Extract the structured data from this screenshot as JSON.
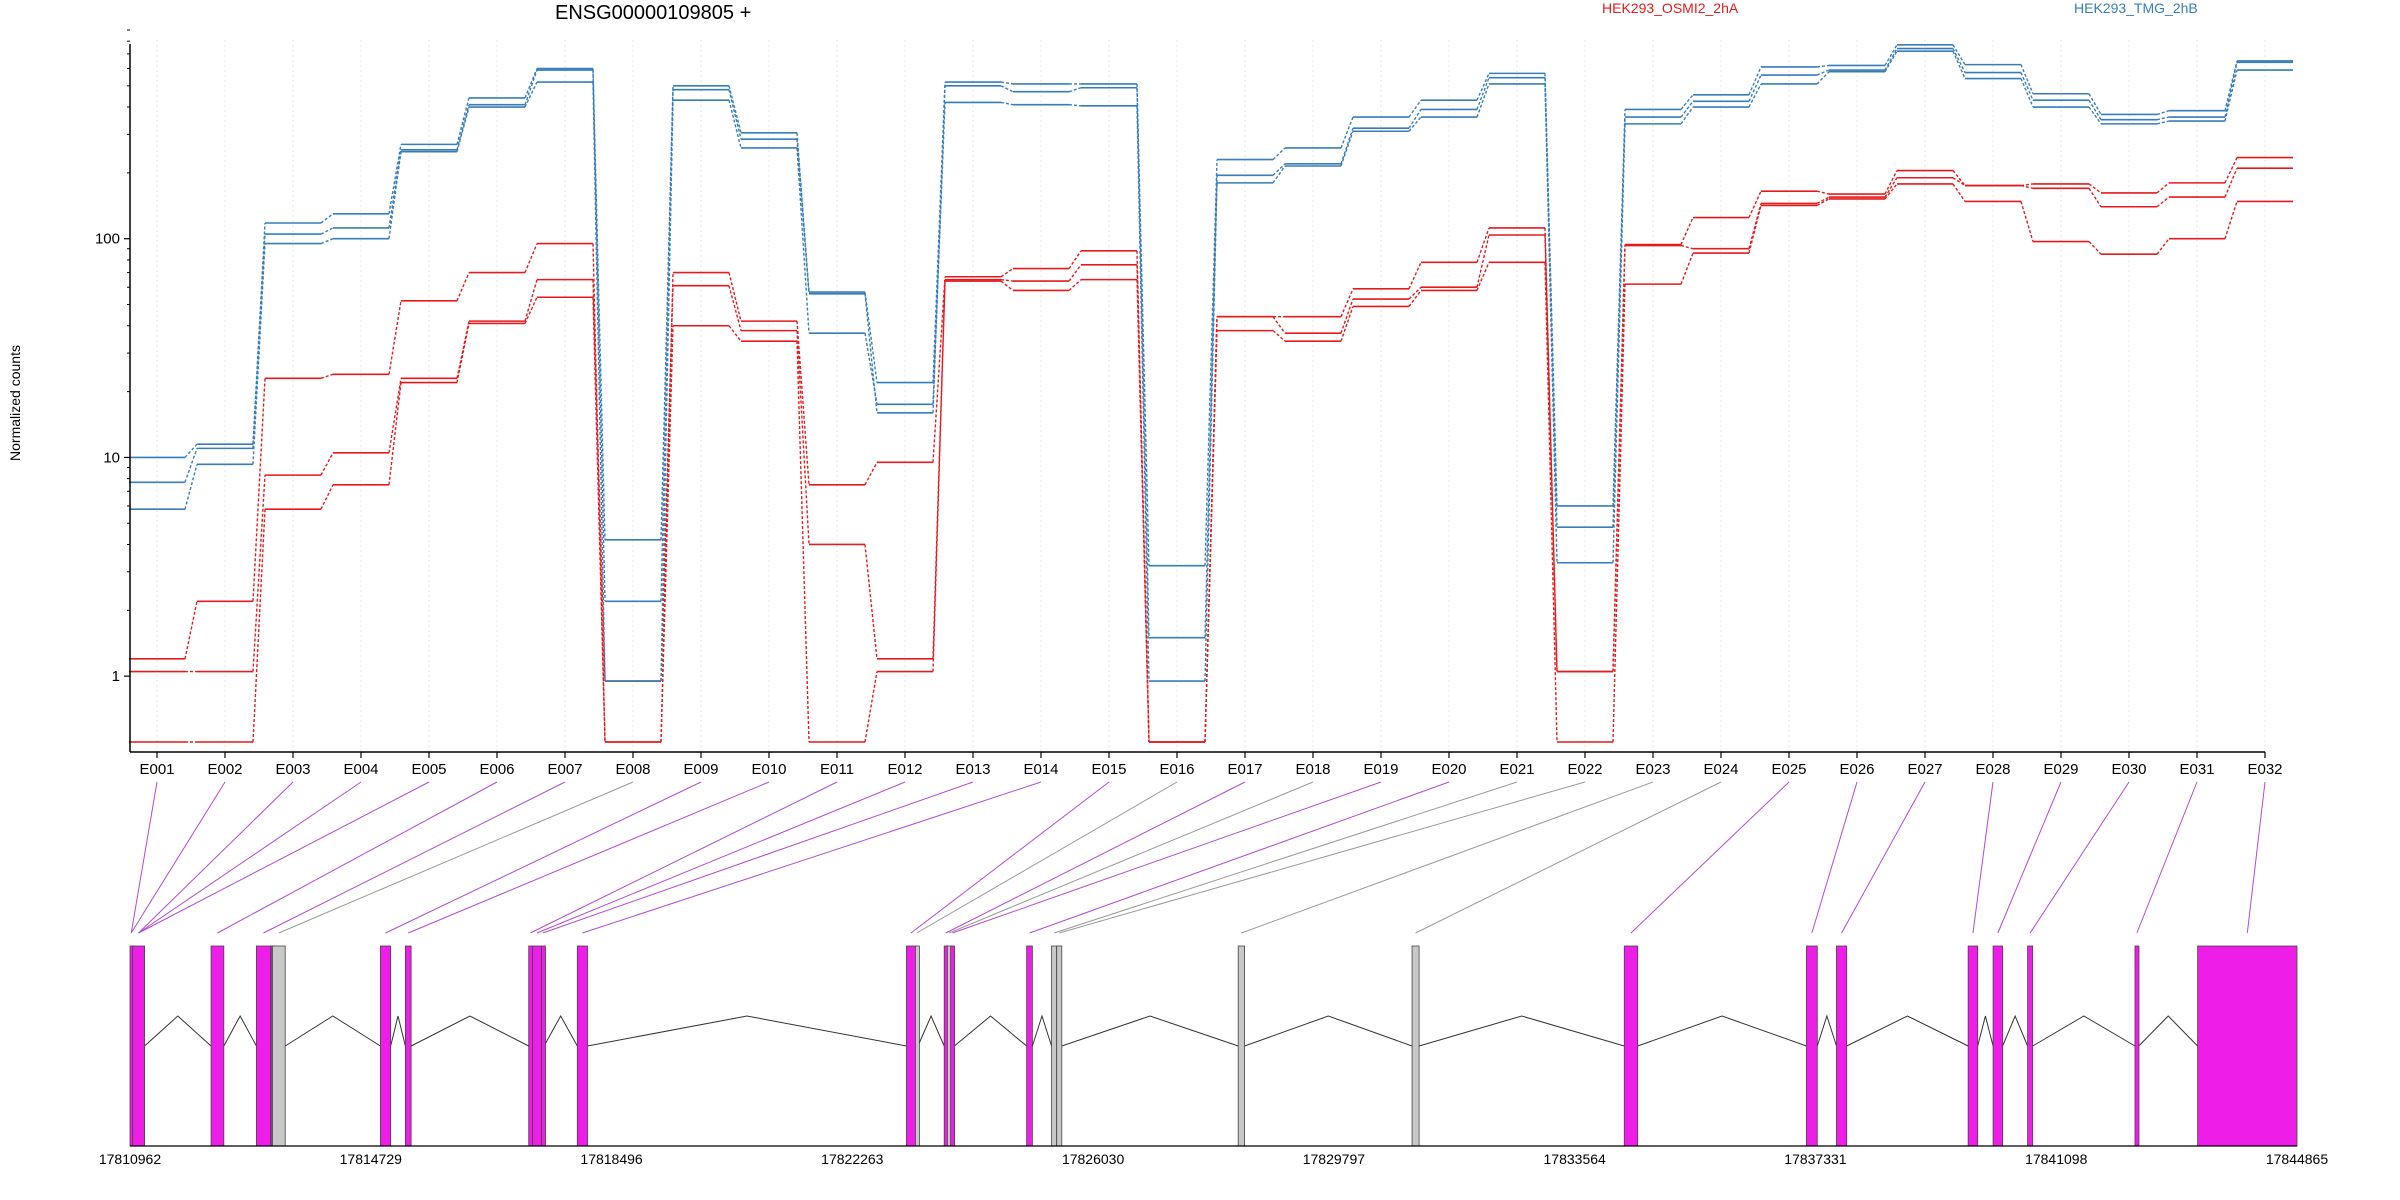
{
  "chart_data": {
    "type": "line",
    "title": "ENSG00000109805 +",
    "ylabel": "Normalized counts",
    "yscale": "log",
    "ylim": [
      0.5,
      900
    ],
    "yticks": [
      "1",
      "10",
      "100"
    ],
    "categories": [
      "E001",
      "E002",
      "E003",
      "E004",
      "E005",
      "E006",
      "E007",
      "E008",
      "E009",
      "E010",
      "E011",
      "E012",
      "E013",
      "E014",
      "E015",
      "E016",
      "E017",
      "E018",
      "E019",
      "E020",
      "E021",
      "E022",
      "E023",
      "E024",
      "E025",
      "E026",
      "E027",
      "E028",
      "E029",
      "E030",
      "E031",
      "E032"
    ],
    "series": [
      {
        "name": "HEK293_OSMI2_2hA",
        "color": "#e41a1c",
        "group": "HEK293_OSMI2_2hA",
        "values": [
          1.2,
          2.2,
          23,
          24,
          52,
          70,
          95,
          0.5,
          70,
          42,
          7.5,
          9.5,
          67,
          73,
          88,
          0.5,
          44,
          44,
          59,
          78,
          112,
          1.05,
          94,
          125,
          165,
          160,
          205,
          175,
          178,
          162,
          180,
          235
        ]
      },
      {
        "name": "",
        "color": "#e41a1c",
        "group": "HEK293_OSMI2_2hA",
        "values": [
          1.05,
          1.05,
          8.3,
          10.5,
          23,
          42,
          65,
          0.95,
          61,
          38,
          4,
          1.2,
          65,
          64,
          76,
          0.5,
          44,
          37,
          53,
          60,
          104,
          1.05,
          93,
          90,
          145,
          155,
          190,
          175,
          170,
          140,
          155,
          210
        ]
      },
      {
        "name": "",
        "color": "#e41a1c",
        "group": "HEK293_OSMI2_2hA",
        "values": [
          0.5,
          0.5,
          5.8,
          7.5,
          22,
          41,
          54,
          0.5,
          40,
          34,
          0.5,
          1.05,
          64,
          58,
          65,
          0.5,
          38,
          34,
          49,
          58,
          78,
          0.5,
          62,
          86,
          142,
          152,
          178,
          148,
          97,
          85,
          100,
          148
        ]
      },
      {
        "name": "HEK293_TMG_2hB",
        "color": "#377eb8",
        "group": "HEK293_TMG_2hB",
        "values": [
          10,
          11.5,
          118,
          130,
          270,
          440,
          600,
          4.2,
          500,
          305,
          57,
          22,
          520,
          510,
          510,
          3.2,
          230,
          260,
          360,
          430,
          570,
          6,
          390,
          455,
          610,
          620,
          770,
          625,
          460,
          370,
          385,
          650
        ]
      },
      {
        "name": "",
        "color": "#377eb8",
        "group": "HEK293_TMG_2hB",
        "values": [
          7.7,
          11,
          105,
          112,
          255,
          410,
          590,
          2.2,
          480,
          285,
          56,
          16,
          500,
          470,
          490,
          1.5,
          195,
          220,
          320,
          390,
          545,
          4.8,
          360,
          425,
          560,
          590,
          740,
          575,
          430,
          350,
          360,
          640
        ]
      },
      {
        "name": "",
        "color": "#377eb8",
        "group": "HEK293_TMG_2hB",
        "values": [
          5.8,
          9.3,
          95,
          100,
          250,
          400,
          520,
          0.95,
          430,
          260,
          37,
          17.5,
          420,
          410,
          405,
          0.95,
          180,
          215,
          310,
          360,
          510,
          3.3,
          335,
          400,
          510,
          580,
          720,
          540,
          400,
          335,
          345,
          590
        ]
      }
    ],
    "legend": [
      {
        "label": "HEK293_OSMI2_2hA",
        "color": "#e41a1c"
      },
      {
        "label": "HEK293_TMG_2hB",
        "color": "#377eb8"
      }
    ],
    "gene_model": {
      "xlim": [
        17810962,
        17844865
      ],
      "xticks": [
        "17810962",
        "17814729",
        "17818496",
        "17822263",
        "17826030",
        "17829797",
        "17833564",
        "17837331",
        "17841098",
        "17844865"
      ],
      "exon_color": "#ee1ee8",
      "nontested_color": "#c8c8c8",
      "exons": [
        {
          "id": "E001",
          "start": 17810962,
          "end": 17811000,
          "tested": true
        },
        {
          "id": "E002",
          "start": 17811000,
          "end": 17811190,
          "tested": true
        },
        {
          "id": "E003",
          "start": 17812230,
          "end": 17812430,
          "tested": true
        },
        {
          "id": "E004",
          "start": 17812940,
          "end": 17813160,
          "tested": true
        },
        {
          "id": "E005",
          "start": 17813170,
          "end": 17813190,
          "tested": true
        },
        {
          "id": "E006",
          "start": 17813190,
          "end": 17813390,
          "tested": false
        },
        {
          "id": "E007",
          "start": 17814880,
          "end": 17815040,
          "tested": true
        },
        {
          "id": "E008",
          "start": 17815270,
          "end": 17815360,
          "tested": true
        },
        {
          "id": "E009",
          "start": 17817200,
          "end": 17817250,
          "tested": true
        },
        {
          "id": "E010",
          "start": 17817260,
          "end": 17817400,
          "tested": true
        },
        {
          "id": "E011",
          "start": 17817400,
          "end": 17817440,
          "tested": true
        },
        {
          "id": "E012",
          "start": 17817960,
          "end": 17818120,
          "tested": true
        },
        {
          "id": "E013",
          "start": 17823110,
          "end": 17823250,
          "tested": true
        },
        {
          "id": "E014",
          "start": 17823250,
          "end": 17823290,
          "tested": false
        },
        {
          "id": "E015",
          "start": 17823700,
          "end": 17823750,
          "tested": true
        },
        {
          "id": "E016",
          "start": 17823750,
          "end": 17823800,
          "tested": false
        },
        {
          "id": "E017",
          "start": 17823800,
          "end": 17823860,
          "tested": true
        },
        {
          "id": "E018",
          "start": 17824990,
          "end": 17825080,
          "tested": true
        },
        {
          "id": "E019",
          "start": 17825380,
          "end": 17825460,
          "tested": false
        },
        {
          "id": "E020",
          "start": 17825460,
          "end": 17825540,
          "tested": false
        },
        {
          "id": "E021",
          "start": 17828300,
          "end": 17828400,
          "tested": false
        },
        {
          "id": "E022",
          "start": 17831020,
          "end": 17831130,
          "tested": false
        },
        {
          "id": "E023",
          "start": 17834340,
          "end": 17834550,
          "tested": true
        },
        {
          "id": "E024",
          "start": 17837190,
          "end": 17837360,
          "tested": true
        },
        {
          "id": "E025",
          "start": 17837660,
          "end": 17837820,
          "tested": true
        },
        {
          "id": "E026",
          "start": 17839720,
          "end": 17839870,
          "tested": true
        },
        {
          "id": "E027",
          "start": 17840110,
          "end": 17840260,
          "tested": true
        },
        {
          "id": "E028",
          "start": 17840650,
          "end": 17840730,
          "tested": true
        },
        {
          "id": "E029",
          "start": 17842330,
          "end": 17842390,
          "tested": true
        },
        {
          "id": "E030",
          "start": 17843310,
          "end": 17844865,
          "tested": true
        }
      ],
      "connectors": [
        {
          "from": "E001",
          "exon": "E001"
        },
        {
          "from": "E002",
          "exon": "E001"
        },
        {
          "from": "E003",
          "exon": "E002"
        },
        {
          "from": "E004",
          "exon": "E002"
        },
        {
          "from": "E005",
          "exon": "E002"
        },
        {
          "from": "E006",
          "exon": "E003"
        },
        {
          "from": "E007",
          "exon": "E004"
        },
        {
          "from": "E008",
          "exon": "E006"
        },
        {
          "from": "E009",
          "exon": "E007"
        },
        {
          "from": "E010",
          "exon": "E008"
        },
        {
          "from": "E011",
          "exon": "E009"
        },
        {
          "from": "E012",
          "exon": "E010"
        },
        {
          "from": "E013",
          "exon": "E011"
        },
        {
          "from": "E014",
          "exon": "E012"
        },
        {
          "from": "E015",
          "exon": "E013"
        },
        {
          "from": "E016",
          "exon": "E014"
        },
        {
          "from": "E017",
          "exon": "E015"
        },
        {
          "from": "E018",
          "exon": "E016"
        },
        {
          "from": "E019",
          "exon": "E017"
        },
        {
          "from": "E020",
          "exon": "E018"
        },
        {
          "from": "E021",
          "exon": "E019"
        },
        {
          "from": "E022",
          "exon": "E020"
        },
        {
          "from": "E023",
          "exon": "E021"
        },
        {
          "from": "E024",
          "exon": "E022"
        },
        {
          "from": "E025",
          "exon": "E023"
        },
        {
          "from": "E026",
          "exon": "E024"
        },
        {
          "from": "E027",
          "exon": "E025"
        },
        {
          "from": "E028",
          "exon": "E026"
        },
        {
          "from": "E029",
          "exon": "E027"
        },
        {
          "from": "E030",
          "exon": "E028"
        },
        {
          "from": "E031",
          "exon": "E029"
        },
        {
          "from": "E032",
          "exon": "E030"
        }
      ]
    }
  }
}
